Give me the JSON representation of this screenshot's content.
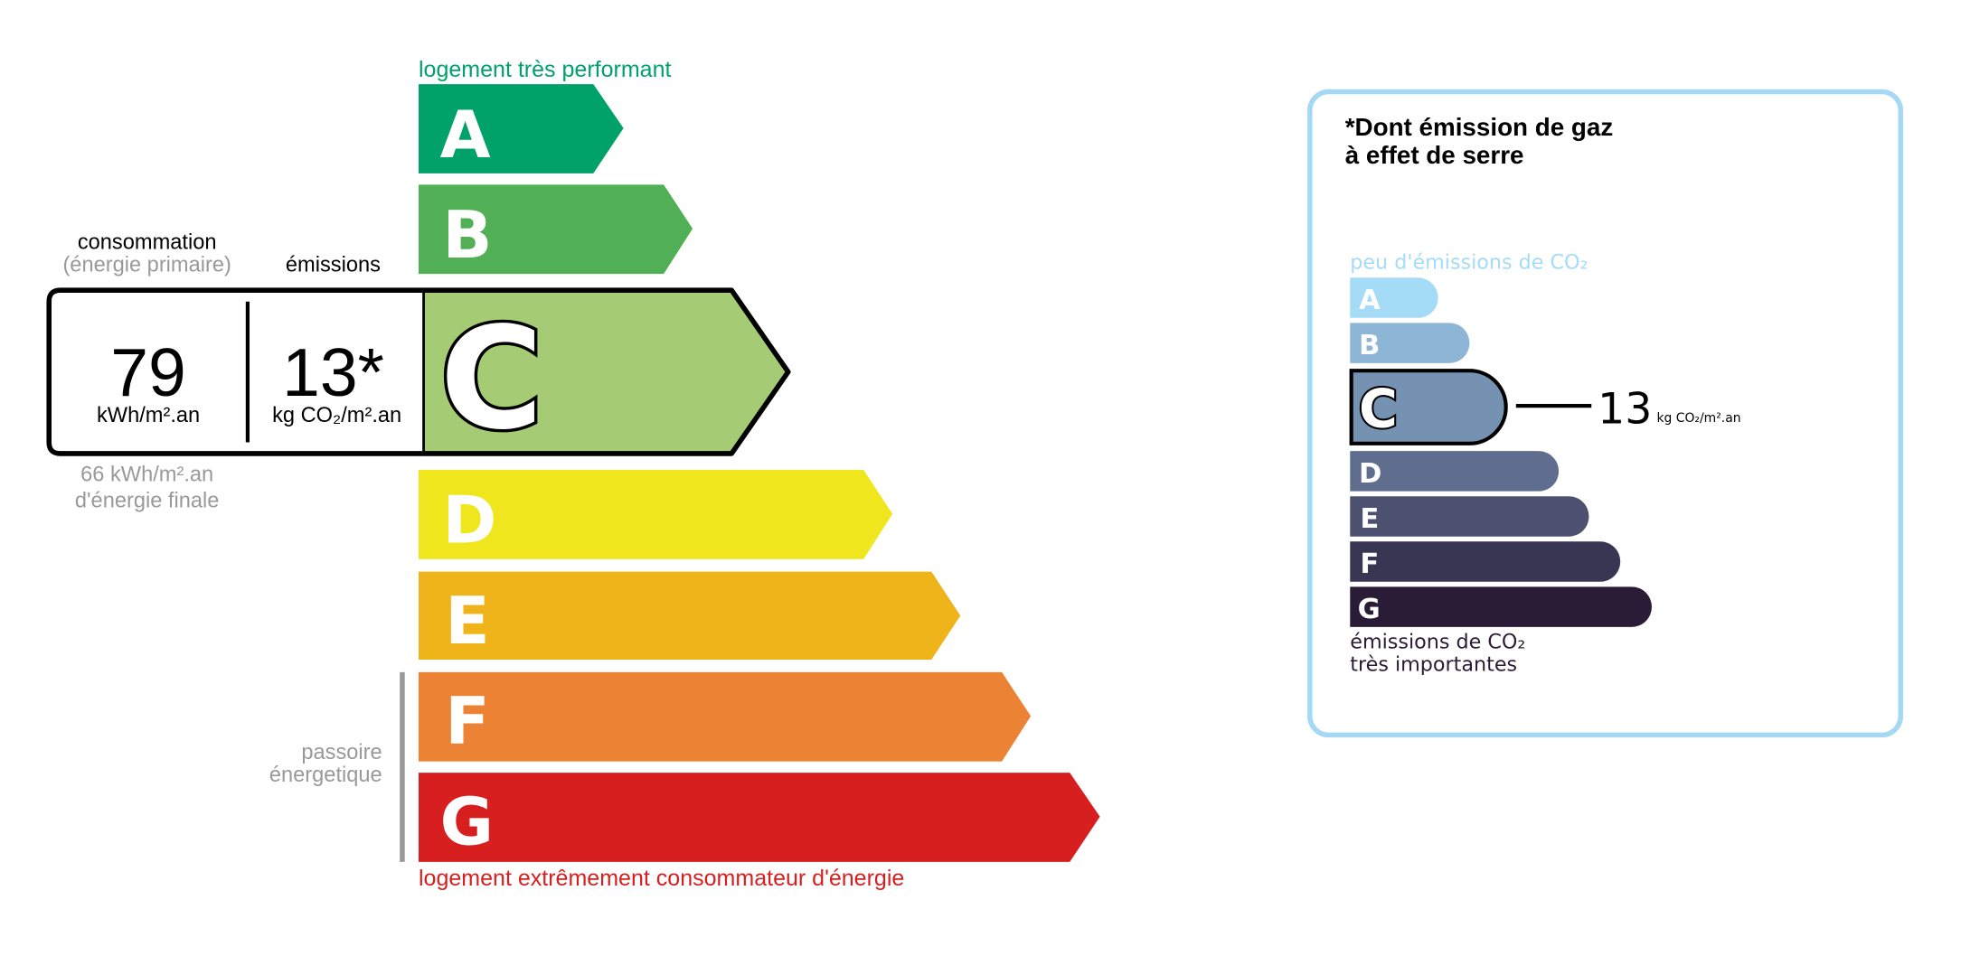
{
  "energy": {
    "top_label": "logement très performant",
    "bottom_label": "logement extrêmement consommateur d'énergie",
    "passoire": [
      "passoire",
      "énergetique"
    ],
    "classes": [
      {
        "letter": "A",
        "color": "#00a26a"
      },
      {
        "letter": "B",
        "color": "#51b055"
      },
      {
        "letter": "C",
        "color": "#a5cc74"
      },
      {
        "letter": "D",
        "color": "#f0e61d"
      },
      {
        "letter": "E",
        "color": "#efb41a"
      },
      {
        "letter": "F",
        "color": "#eb8234"
      },
      {
        "letter": "G",
        "color": "#d81f20"
      }
    ],
    "current_class": "C",
    "consumption_header": "consommation",
    "consumption_subheader": "(énergie primaire)",
    "emissions_header": "émissions",
    "consumption_value": "79",
    "consumption_unit": "kWh/m².an",
    "emissions_value": "13*",
    "emissions_unit": "kg CO₂/m².an",
    "final_energy_value": "66 kWh/m².an",
    "final_energy_label": "d'énergie finale"
  },
  "ges": {
    "title_line1": "*Dont émission de gaz",
    "title_line2": "à effet de serre",
    "top_label": "peu d'émissions de CO₂",
    "bottom_label_line1": "émissions de CO₂",
    "bottom_label_line2": "très importantes",
    "classes": [
      {
        "letter": "A",
        "color": "#a4dbf7"
      },
      {
        "letter": "B",
        "color": "#8db5d6"
      },
      {
        "letter": "C",
        "color": "#7592b3"
      },
      {
        "letter": "D",
        "color": "#5f6e8f"
      },
      {
        "letter": "E",
        "color": "#4d5170"
      },
      {
        "letter": "F",
        "color": "#393654"
      },
      {
        "letter": "G",
        "color": "#2a1c36"
      }
    ],
    "current_class": "C",
    "value": "13",
    "unit": "kg CO₂/m².an",
    "border_color": "#a5d8f5"
  }
}
